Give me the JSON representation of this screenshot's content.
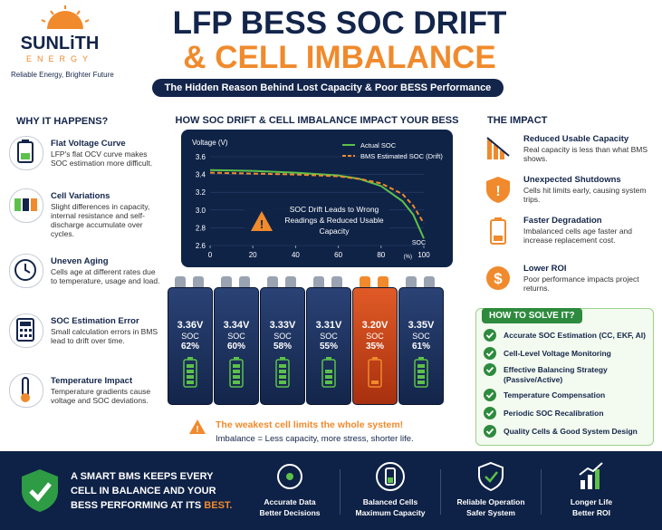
{
  "logo": {
    "name": "SUNLiTH",
    "sub": "ENERGY",
    "tagline": "Reliable Energy, Brighter Future"
  },
  "header": {
    "title_line1": "LFP BESS SOC DRIFT",
    "title_line2": "& CELL IMBALANCE",
    "subtitle": "The Hidden Reason Behind Lost Capacity & Poor BESS Performance"
  },
  "why": {
    "title": "WHY IT HAPPENS?",
    "items": [
      {
        "title": "Flat Voltage Curve",
        "text": "LFP's flat OCV curve makes SOC estimation more difficult."
      },
      {
        "title": "Cell Variations",
        "text": "Slight differences in capacity, internal resistance and self-discharge accumulate over cycles."
      },
      {
        "title": "Uneven Aging",
        "text": "Cells age at different rates due to temperature, usage and load."
      },
      {
        "title": "SOC Estimation Error",
        "text": "Small calculation errors in BMS lead to drift over time."
      },
      {
        "title": "Temperature Impact",
        "text": "Temperature gradients cause voltage and SOC deviations."
      }
    ]
  },
  "center": {
    "title": "HOW SOC DRIFT & CELL IMBALANCE IMPACT YOUR BESS",
    "cells": [
      {
        "voltage": "3.36V",
        "label": "SOC",
        "soc": "62%"
      },
      {
        "voltage": "3.34V",
        "label": "SOC",
        "soc": "60%"
      },
      {
        "voltage": "3.33V",
        "label": "SOC",
        "soc": "58%"
      },
      {
        "voltage": "3.31V",
        "label": "SOC",
        "soc": "55%"
      },
      {
        "voltage": "3.20V",
        "label": "SOC",
        "soc": "35%"
      },
      {
        "voltage": "3.35V",
        "label": "SOC",
        "soc": "61%"
      }
    ],
    "warning": "The weakest cell limits the whole system!",
    "note": "Imbalance = Less capacity, more stress, shorter life."
  },
  "chart_data": {
    "type": "line",
    "y_label": "Voltage (V)",
    "x_label": "SOC",
    "x_unit": "(%)",
    "annotation": "SOC Drift Leads to Wrong Readings & Reduced Usable Capacity",
    "x": [
      0,
      20,
      40,
      60,
      70,
      80,
      90,
      95,
      100
    ],
    "series": [
      {
        "name": "Actual SOC",
        "color": "#5cc14a",
        "dashed": false,
        "values": [
          3.45,
          3.44,
          3.42,
          3.39,
          3.35,
          3.27,
          3.1,
          2.95,
          2.68
        ]
      },
      {
        "name": "BMS Estimated SOC (Drift)",
        "color": "#f08a2c",
        "dashed": true,
        "values": [
          3.42,
          3.41,
          3.4,
          3.38,
          3.35,
          3.3,
          3.18,
          3.05,
          2.85
        ]
      }
    ],
    "xlim": [
      0,
      100
    ],
    "xticks": [
      0,
      20,
      40,
      60,
      80,
      100
    ],
    "ylim": [
      2.6,
      3.6
    ],
    "yticks": [
      2.6,
      2.8,
      {
        "value": 3,
        "label": "3.0"
      },
      3.2,
      3.4,
      3.6
    ],
    "grid": true
  },
  "impact": {
    "title": "THE IMPACT",
    "items": [
      {
        "title": "Reduced Usable Capacity",
        "text": "Real capacity is less than what BMS shows."
      },
      {
        "title": "Unexpected Shutdowns",
        "text": "Cells hit limits early, causing system trips."
      },
      {
        "title": "Faster Degradation",
        "text": "Imbalanced cells age faster and increase replacement cost."
      },
      {
        "title": "Lower ROI",
        "text": "Poor performance impacts project returns."
      }
    ]
  },
  "solve": {
    "title": "HOW TO SOLVE IT?",
    "items": [
      "Accurate SOC Estimation (CC, EKF, AI)",
      "Cell-Level Voltage Monitoring",
      "Effective Balancing Strategy (Passive/Active)",
      "Temperature Compensation",
      "Periodic SOC Recalibration",
      "Quality Cells & Good System Design"
    ]
  },
  "footer": {
    "text": "A SMART BMS KEEPS EVERY CELL IN BALANCE AND YOUR BESS PERFORMING AT ITS",
    "highlight": "BEST.",
    "items": [
      {
        "line1": "Accurate Data",
        "line2": "Better Decisions"
      },
      {
        "line1": "Balanced Cells",
        "line2": "Maximum Capacity"
      },
      {
        "line1": "Reliable Operation",
        "line2": "Safer System"
      },
      {
        "line1": "Longer Life",
        "line2": "Better ROI"
      }
    ]
  }
}
